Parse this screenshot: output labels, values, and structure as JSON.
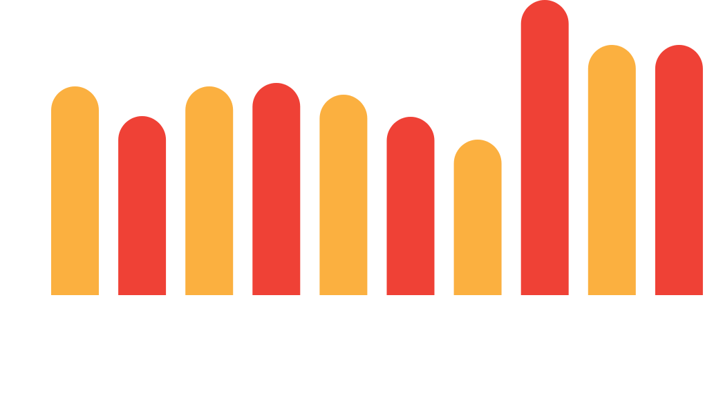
{
  "chart_data": {
    "type": "bar",
    "values": [
      302,
      259,
      302,
      307,
      290,
      258,
      225,
      427,
      362,
      362
    ],
    "colors": [
      "#fbb040",
      "#ef4136",
      "#fbb040",
      "#ef4136",
      "#fbb040",
      "#ef4136",
      "#fbb040",
      "#ef4136",
      "#fbb040",
      "#ef4136"
    ],
    "ylim": [
      0,
      427
    ]
  }
}
